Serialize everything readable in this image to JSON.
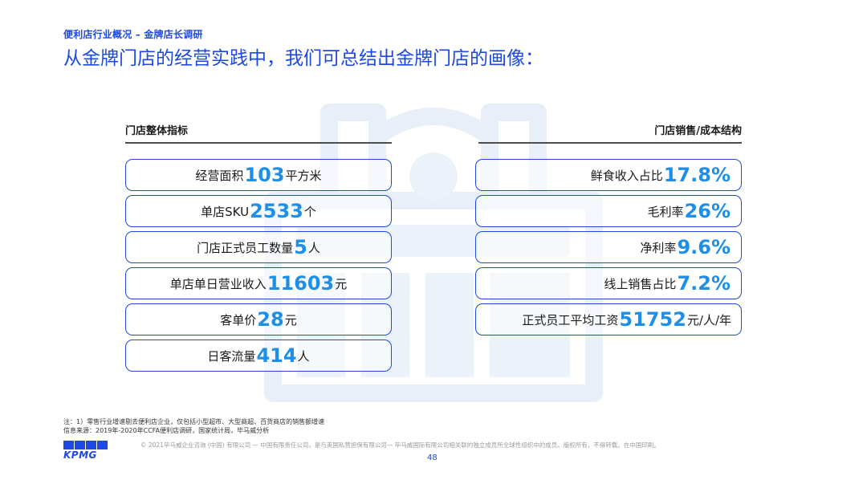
{
  "header": {
    "breadcrumb": "便利店行业概况 – 金牌店长调研",
    "title": "从金牌门店的经营实践中，我们可总结出金牌门店的画像："
  },
  "left_panel": {
    "heading": "门店整体指标",
    "items": [
      {
        "label": "经营面积",
        "value": "103",
        "unit": "平方米"
      },
      {
        "label": "单店SKU",
        "value": "2533",
        "unit": "个"
      },
      {
        "label": "门店正式员工数量",
        "value": "5",
        "unit": "人"
      },
      {
        "label": "单店单日营业收入",
        "value": "11603",
        "unit": "元"
      },
      {
        "label": "客单价",
        "value": "28",
        "unit": "元"
      },
      {
        "label": "日客流量",
        "value": "414",
        "unit": "人"
      }
    ]
  },
  "right_panel": {
    "heading": "门店销售/成本结构",
    "items": [
      {
        "label": "鲜食收入占比",
        "value": "17.8%",
        "unit": ""
      },
      {
        "label": "毛利率",
        "value": "26%",
        "unit": ""
      },
      {
        "label": "净利率",
        "value": "9.6%",
        "unit": ""
      },
      {
        "label": "线上销售占比",
        "value": "7.2%",
        "unit": ""
      },
      {
        "label": "正式员工平均工资",
        "value": "51752",
        "unit": "元/人/年"
      }
    ]
  },
  "footer": {
    "note": "注：1）零售行业增速剔去便利店企业，仅包括小型超市、大型商超、百货商店的销售额增速",
    "source": "信息来源：2019年-2020年CCFA便利店调研，国家统计局，毕马威分析",
    "copyright": "© 2021毕马威企业咨询 (中国) 有限公司 — 中国有限责任公司，是与英国私营担保有限公司— 毕马威国际有限公司相关联的独立成员所全球性组织中的成员。版权所有，不得转载。在中国印刷。",
    "page_number": "48",
    "logo_text": "KPMG"
  },
  "colors": {
    "brand_blue": "#1e49e2",
    "value_blue": "#1e8fe8",
    "watermark": "#e6eef7"
  }
}
